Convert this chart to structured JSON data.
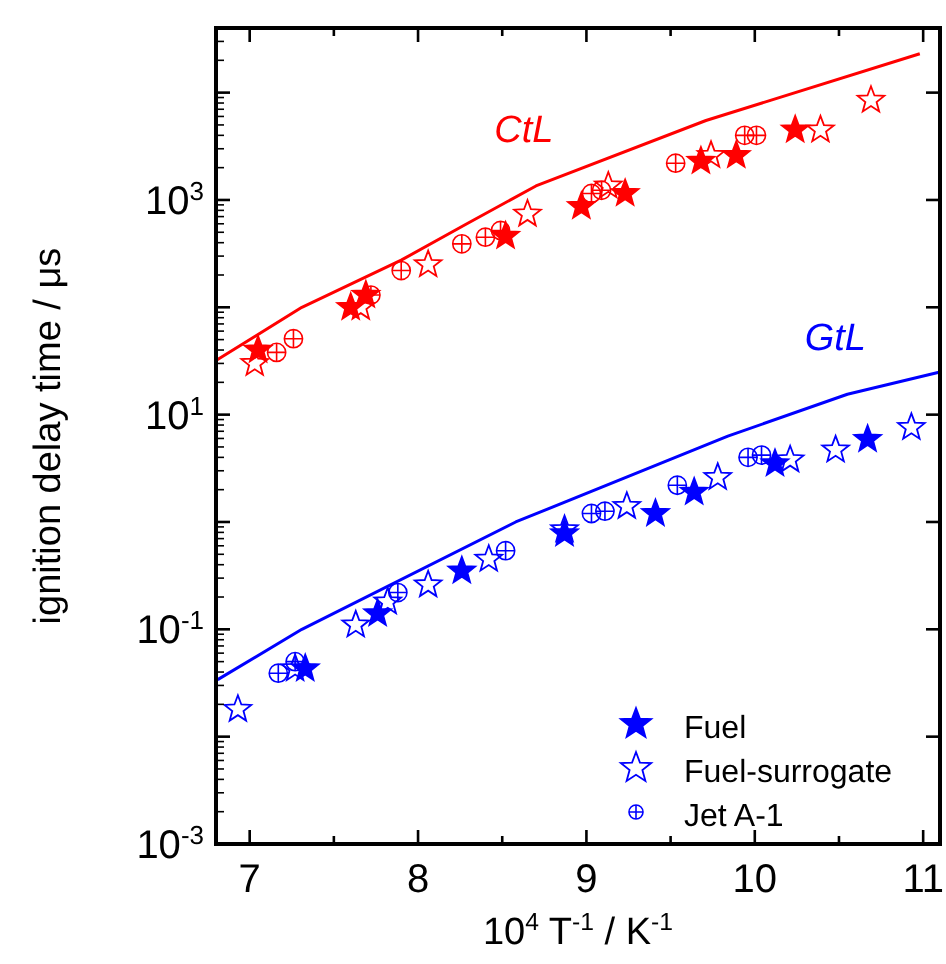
{
  "chart_data": {
    "type": "scatter",
    "xlabel": "10$^{4}$ T$^{-1}$ / K$^{-1}$",
    "ylabel": "ignition delay time / μs",
    "log": "y",
    "grid": false,
    "legend": "bottom right",
    "xlim": [
      6.8,
      11.1
    ],
    "xticks": [
      7,
      8,
      9,
      10,
      11
    ],
    "ylim": [
      0.001,
      40000
    ],
    "yticks": [
      {
        "value": 0.001,
        "label": "10$^{-3}$"
      },
      {
        "value": 0.01,
        "label": null
      },
      {
        "value": 0.1,
        "label": "10$^{-1}$"
      },
      {
        "value": 1,
        "label": null
      },
      {
        "value": 10,
        "label": "10$^{1}$"
      },
      {
        "value": 100,
        "label": null
      },
      {
        "value": 1000,
        "label": "10$^{3}$"
      },
      {
        "value": 10000,
        "label": null
      }
    ],
    "annotations": [
      "CtL",
      "GtL"
    ],
    "series": [
      {
        "type": "line",
        "color": "#ff0000",
        "marker": "none",
        "line_style": "solid",
        "x": [
          6.8,
          7.31,
          7.9,
          8.29,
          8.7,
          9.71,
          10.98
        ],
        "values": [
          32,
          100,
          275,
          600,
          1350,
          5500,
          23000
        ]
      },
      {
        "type": "line",
        "color": "#0000ff",
        "marker": "none",
        "line_style": "solid",
        "x": [
          6.81,
          7.31,
          8.58,
          9.84,
          10.55,
          11.1
        ],
        "values": [
          0.034,
          0.1,
          1.0,
          6.3,
          15.5,
          25
        ]
      },
      {
        "color": "#ff0000",
        "marker": "star",
        "x": [
          7.05,
          7.6,
          7.69,
          8.52,
          8.97,
          9.23,
          9.68,
          9.89,
          10.24
        ],
        "values": [
          40,
          100,
          130,
          460,
          870,
          1150,
          2300,
          2600,
          4500
        ]
      },
      {
        "color": "#ff0000",
        "marker": "star",
        "x": [
          7.03,
          7.66,
          8.06,
          8.65,
          9.13,
          9.74,
          10.39,
          10.69
        ],
        "values": [
          30,
          100,
          250,
          740,
          1350,
          2600,
          4500,
          8500
        ]
      },
      {
        "color": "#ff0000",
        "marker": "circle",
        "x": [
          7.16,
          7.26,
          7.72,
          7.9,
          8.26,
          8.4,
          8.49,
          9.03,
          9.09,
          9.53,
          9.94,
          10.01
        ],
        "values": [
          38,
          51,
          130,
          220,
          390,
          450,
          520,
          1150,
          1230,
          2200,
          4000,
          4000
        ]
      },
      {
        "name": "Fuel",
        "color": "#0000ff",
        "marker": "star",
        "x": [
          7.33,
          7.76,
          8.26,
          8.87,
          9.41,
          9.64,
          10.12,
          10.67
        ],
        "values": [
          0.043,
          0.14,
          0.35,
          0.78,
          1.2,
          1.9,
          3.5,
          5.9
        ]
      },
      {
        "name": "Fuel-surrogate",
        "color": "#0000ff",
        "marker": "star",
        "x": [
          6.93,
          7.27,
          7.63,
          7.82,
          8.06,
          8.42,
          8.87,
          9.24,
          9.78,
          10.21,
          10.48,
          10.93
        ],
        "values": [
          0.018,
          0.043,
          0.11,
          0.18,
          0.26,
          0.45,
          0.85,
          1.4,
          2.6,
          3.8,
          4.7,
          7.6
        ]
      },
      {
        "name": "Jet A-1",
        "color": "#0000ff",
        "marker": "circle",
        "x": [
          7.17,
          7.27,
          7.88,
          8.52,
          9.03,
          9.11,
          9.54,
          9.96,
          10.04
        ],
        "values": [
          0.039,
          0.05,
          0.22,
          0.54,
          1.2,
          1.26,
          2.2,
          4.0,
          4.2
        ]
      }
    ]
  }
}
